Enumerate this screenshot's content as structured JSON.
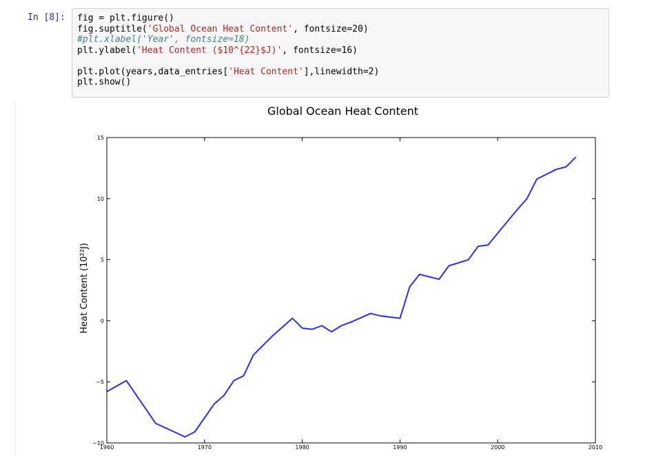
{
  "cell": {
    "prompt": "In [8]:",
    "code_lines": [
      [
        {
          "t": "fig = plt.figure()",
          "c": ""
        }
      ],
      [
        {
          "t": "fig.suptitle(",
          "c": ""
        },
        {
          "t": "'Global Ocean Heat Content'",
          "c": "str"
        },
        {
          "t": ", fontsize=20)",
          "c": ""
        }
      ],
      [
        {
          "t": "#plt.xlabel('Year', fontsize=18)",
          "c": "cmt"
        }
      ],
      [
        {
          "t": "plt.ylabel(",
          "c": ""
        },
        {
          "t": "'Heat Content ($10^{22}$J)'",
          "c": "str"
        },
        {
          "t": ", fontsize=16)",
          "c": ""
        }
      ],
      [
        {
          "t": "",
          "c": ""
        }
      ],
      [
        {
          "t": "plt.plot(years,data_entries[",
          "c": ""
        },
        {
          "t": "'Heat Content'",
          "c": "str"
        },
        {
          "t": "],linewidth=2)",
          "c": ""
        }
      ],
      [
        {
          "t": "plt.show()",
          "c": ""
        }
      ]
    ]
  },
  "chart_data": {
    "type": "line",
    "title": "Global Ocean Heat Content",
    "xlabel": "",
    "ylabel": "Heat Content (10²²J)",
    "xlim": [
      1960,
      2010
    ],
    "ylim": [
      -10,
      15
    ],
    "xticks": [
      1960,
      1970,
      1980,
      1990,
      2000,
      2010
    ],
    "yticks": [
      -10,
      -5,
      0,
      5,
      10,
      15
    ],
    "ytick_labels": [
      "−10",
      "−5",
      "0",
      "5",
      "10",
      "15"
    ],
    "line_color": "#2a2aff",
    "series": [
      {
        "x": [
          1960,
          1962,
          1965,
          1968,
          1969,
          1971,
          1972,
          1973,
          1974,
          1975,
          1977,
          1979,
          1980,
          1981,
          1982,
          1983,
          1984,
          1985,
          1987,
          1988,
          1990,
          1991,
          1992,
          1994,
          1995,
          1997,
          1998,
          1999,
          2002,
          2003,
          2004,
          2006,
          2007,
          2008
        ],
        "y": [
          -5.8,
          -4.9,
          -8.4,
          -9.5,
          -9.1,
          -6.8,
          -6.1,
          -4.9,
          -4.5,
          -2.8,
          -1.2,
          0.2,
          -0.6,
          -0.7,
          -0.4,
          -0.9,
          -0.4,
          -0.1,
          0.6,
          0.4,
          0.2,
          2.8,
          3.8,
          3.4,
          4.5,
          5.0,
          6.1,
          6.2,
          9.1,
          10.0,
          11.6,
          12.4,
          12.6,
          13.4
        ]
      }
    ]
  }
}
